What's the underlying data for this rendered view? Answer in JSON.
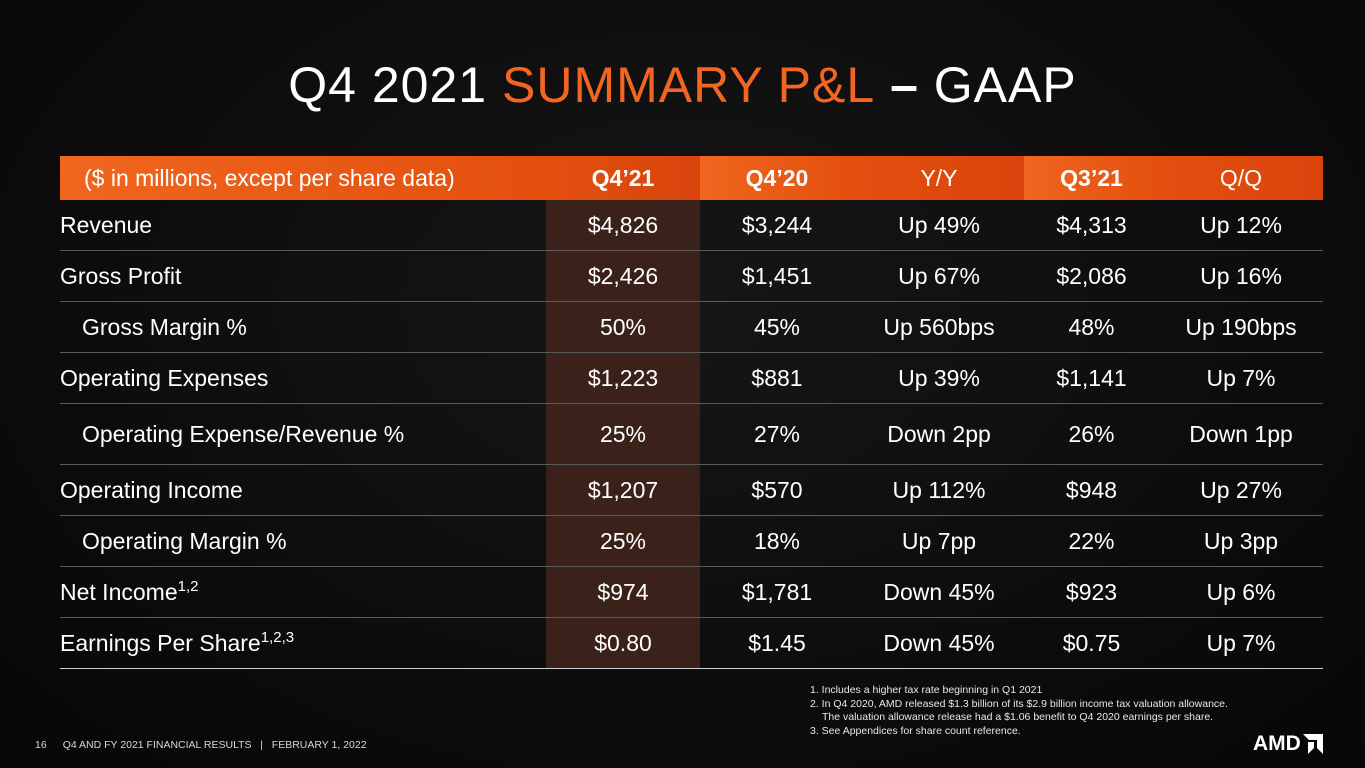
{
  "title": {
    "part1": "Q4 2021 ",
    "accent": "SUMMARY P&L",
    "dash": " – ",
    "part2": "GAAP"
  },
  "table": {
    "header": {
      "label": "($ in millions, except per share data)",
      "col1": "Q4’21",
      "col2": "Q4’20",
      "col3": "Y/Y",
      "col4": "Q3’21",
      "col5": "Q/Q"
    },
    "rows": [
      {
        "label": "Revenue",
        "sup": "",
        "v1": "$4,826",
        "v2": "$3,244",
        "v3": "Up 49%",
        "v4": "$4,313",
        "v5": "Up 12%"
      },
      {
        "label": "Gross Profit",
        "sup": "",
        "v1": "$2,426",
        "v2": "$1,451",
        "v3": "Up 67%",
        "v4": "$2,086",
        "v5": "Up 16%"
      },
      {
        "label": "Gross Margin %",
        "sup": "",
        "v1": "50%",
        "v2": "45%",
        "v3": "Up 560bps",
        "v4": "48%",
        "v5": "Up 190bps"
      },
      {
        "label": "Operating Expenses",
        "sup": "",
        "v1": "$1,223",
        "v2": "$881",
        "v3": "Up 39%",
        "v4": "$1,141",
        "v5": "Up 7%"
      },
      {
        "label": "Operating Expense/Revenue %",
        "sup": "",
        "v1": "25%",
        "v2": "27%",
        "v3": "Down 2pp",
        "v4": "26%",
        "v5": "Down 1pp"
      },
      {
        "label": "Operating Income",
        "sup": "",
        "v1": "$1,207",
        "v2": "$570",
        "v3": "Up 112%",
        "v4": "$948",
        "v5": "Up 27%"
      },
      {
        "label": "Operating Margin %",
        "sup": "",
        "v1": "25%",
        "v2": "18%",
        "v3": "Up 7pp",
        "v4": "22%",
        "v5": "Up 3pp"
      },
      {
        "label": "Net Income",
        "sup": "1,2",
        "v1": "$974",
        "v2": "$1,781",
        "v3": "Down 45%",
        "v4": "$923",
        "v5": "Up 6%"
      },
      {
        "label": "Earnings Per Share",
        "sup": "1,2,3",
        "v1": "$0.80",
        "v2": "$1.45",
        "v3": "Down 45%",
        "v4": "$0.75",
        "v5": "Up 7%"
      }
    ]
  },
  "notes": {
    "n1": "1. Includes a higher tax rate beginning in Q1 2021",
    "n2": "2. In Q4 2020, AMD released $1.3 billion of its $2.9 billion income tax valuation allowance.",
    "n2b": "The valuation allowance release had a $1.06 benefit to Q4 2020 earnings per share.",
    "n3": "3. See Appendices for share count reference."
  },
  "footer": {
    "page": "16",
    "text": "Q4 AND FY 2021 FINANCIAL RESULTS   |   FEBRUARY 1, 2022"
  },
  "logo": {
    "text": "AMD",
    "icon": "amd-arrow-icon"
  }
}
